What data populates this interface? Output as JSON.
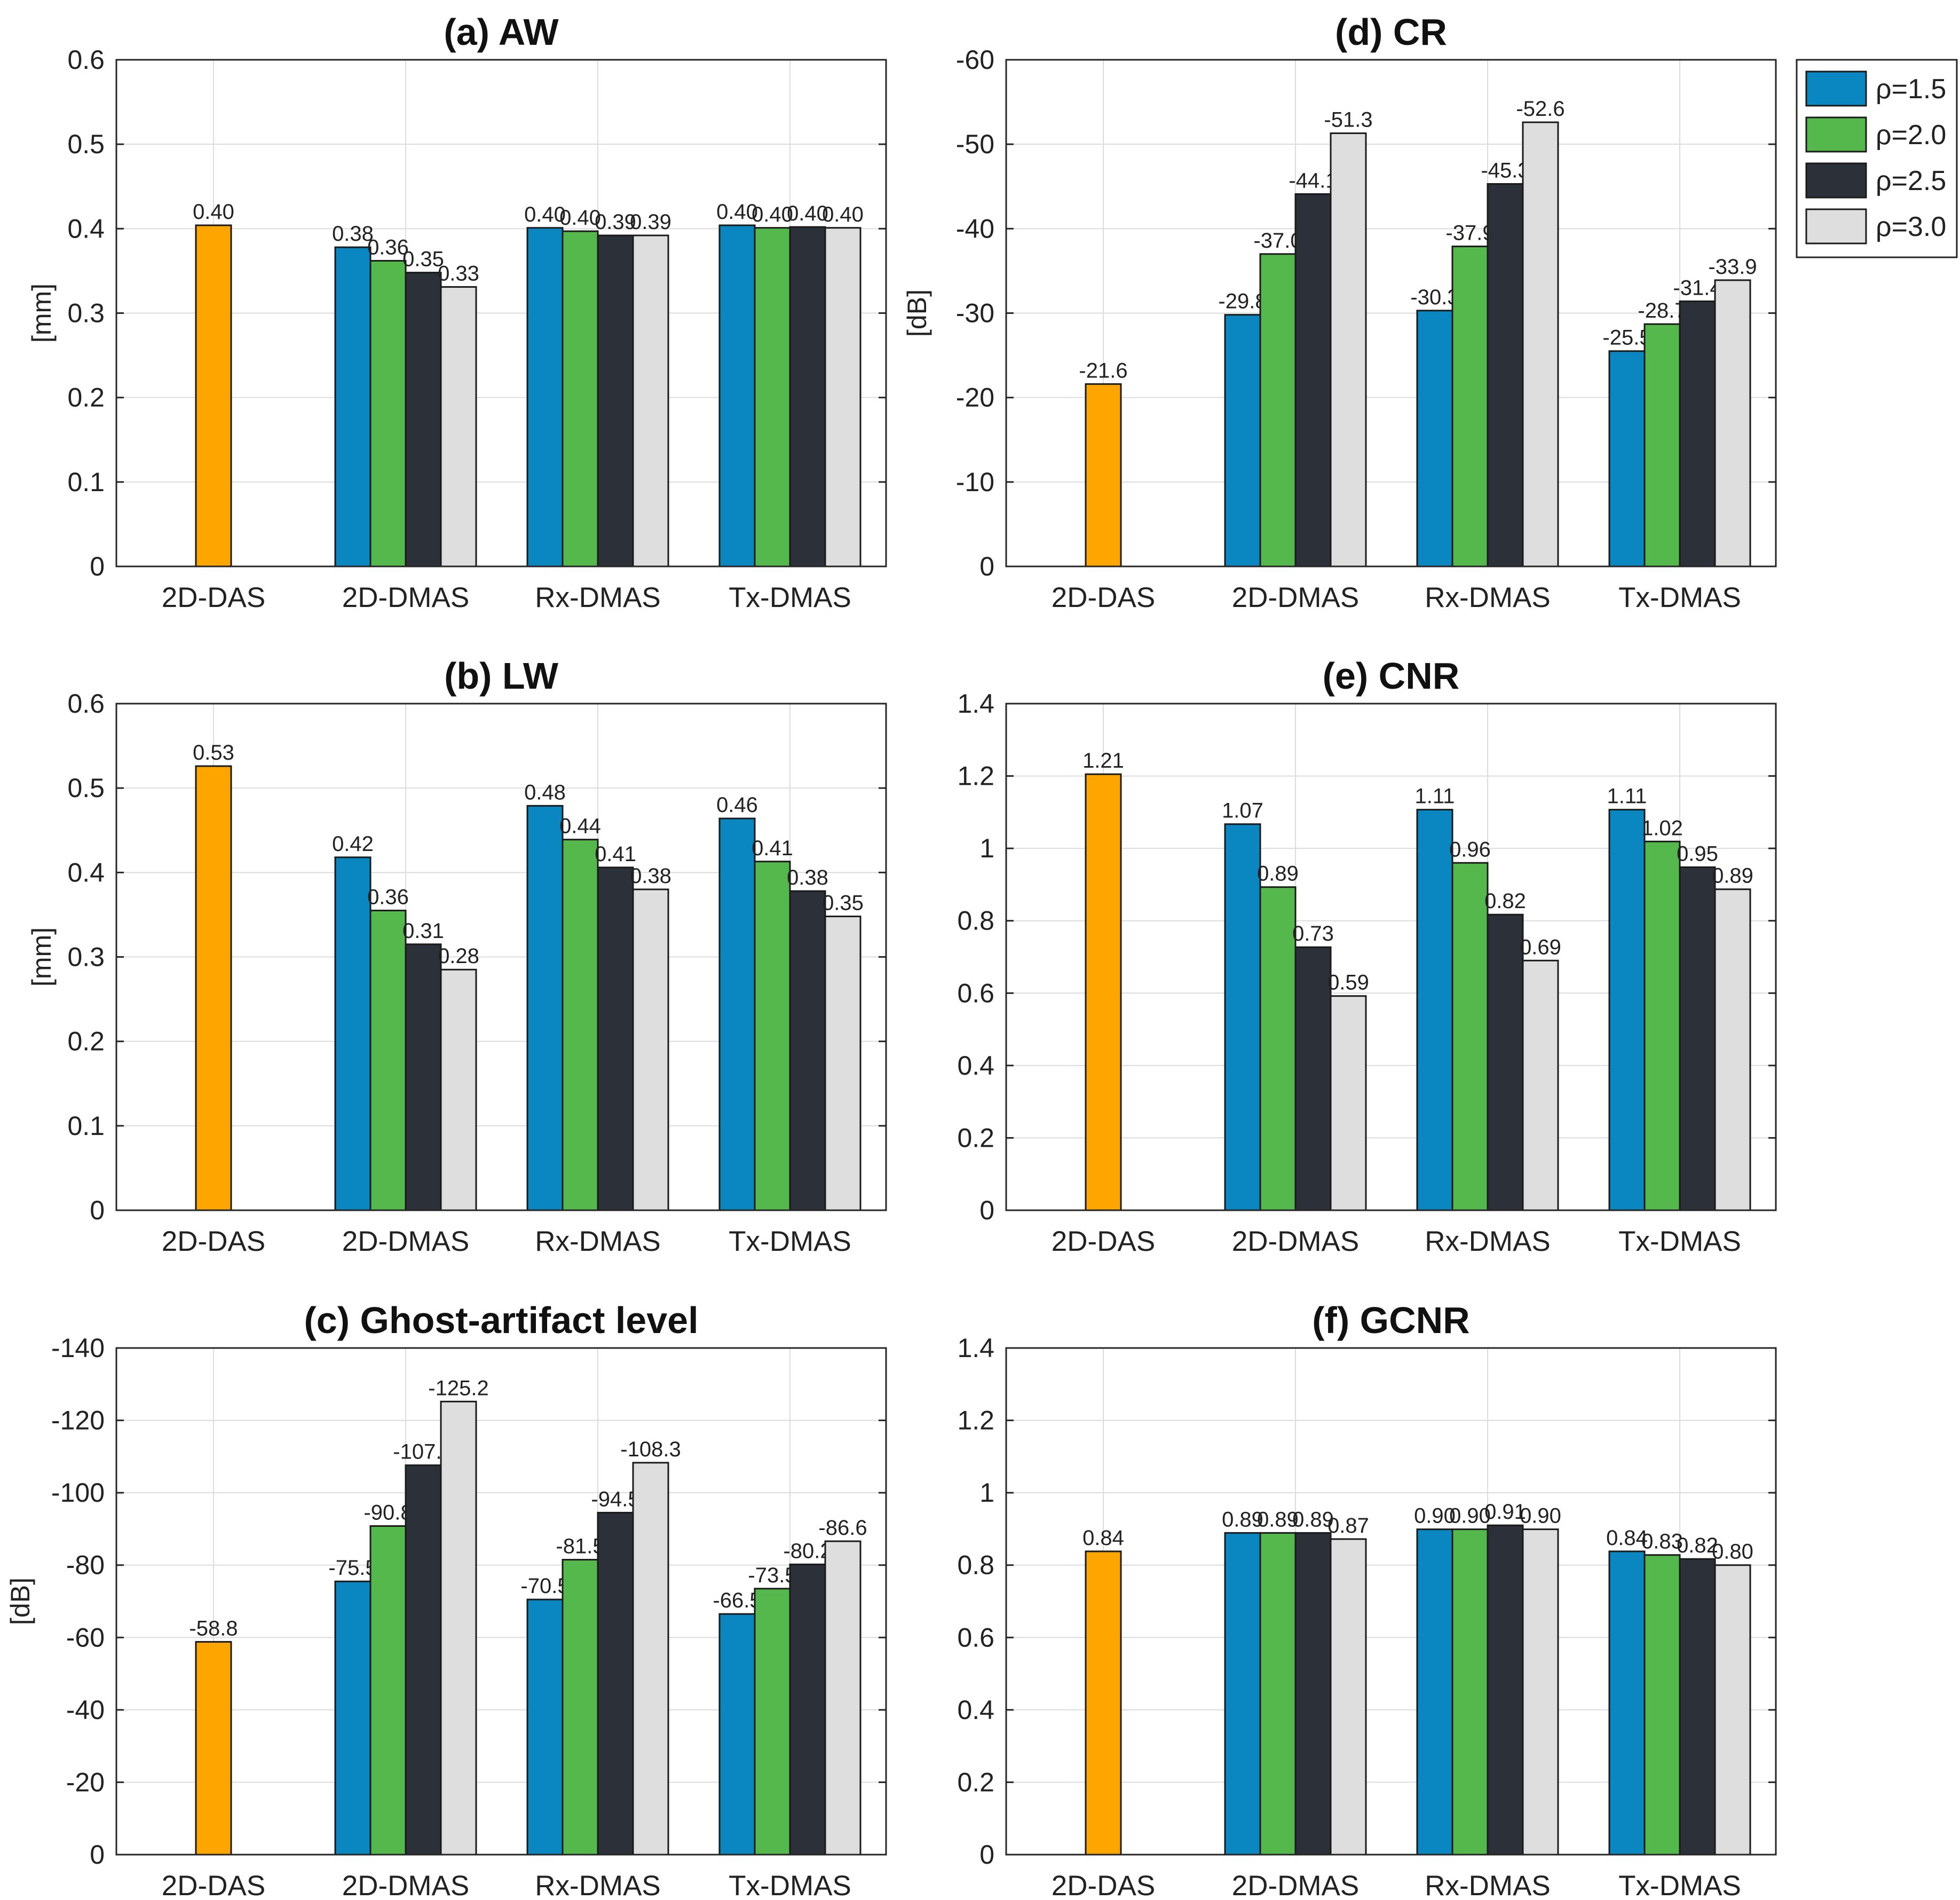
{
  "legend": {
    "entries": [
      {
        "label": "ρ=1.5",
        "color": "#0a87c1"
      },
      {
        "label": "ρ=2.0",
        "color": "#54b84c"
      },
      {
        "label": "ρ=2.5",
        "color": "#2c3038"
      },
      {
        "label": "ρ=3.0",
        "color": "#dedede"
      }
    ],
    "placement": "right of top-right panel"
  },
  "reference_color": "#ffa500",
  "chart_data": [
    {
      "id": "a",
      "type": "bar",
      "title": "(a) AW",
      "ylabel": "[mm]",
      "ylim": [
        0,
        0.6
      ],
      "yticks": [
        0,
        0.1,
        0.2,
        0.3,
        0.4,
        0.5,
        0.6
      ],
      "ytick_labels": [
        "0",
        "0.1",
        "0.2",
        "0.3",
        "0.4",
        "0.5",
        "0.6"
      ],
      "reversed": false,
      "categories": [
        "2D-DAS",
        "2D-DMAS",
        "Rx-DMAS",
        "Tx-DMAS"
      ],
      "reference": {
        "category": "2D-DAS",
        "value": 0.404,
        "label": "0.40"
      },
      "groups": [
        {
          "category": "2D-DMAS",
          "values": [
            0.378,
            0.362,
            0.348,
            0.331
          ],
          "labels": [
            "0.38",
            "0.36",
            "0.35",
            "0.33"
          ]
        },
        {
          "category": "Rx-DMAS",
          "values": [
            0.401,
            0.397,
            0.392,
            0.392
          ],
          "labels": [
            "0.40",
            "0.40",
            "0.39",
            "0.39"
          ]
        },
        {
          "category": "Tx-DMAS",
          "values": [
            0.404,
            0.401,
            0.402,
            0.401
          ],
          "labels": [
            "0.40",
            "0.40",
            "0.40",
            "0.40"
          ]
        }
      ]
    },
    {
      "id": "b",
      "type": "bar",
      "title": "(b) LW",
      "ylabel": "[mm]",
      "ylim": [
        0,
        0.6
      ],
      "yticks": [
        0,
        0.1,
        0.2,
        0.3,
        0.4,
        0.5,
        0.6
      ],
      "ytick_labels": [
        "0",
        "0.1",
        "0.2",
        "0.3",
        "0.4",
        "0.5",
        "0.6"
      ],
      "reversed": false,
      "categories": [
        "2D-DAS",
        "2D-DMAS",
        "Rx-DMAS",
        "Tx-DMAS"
      ],
      "reference": {
        "category": "2D-DAS",
        "value": 0.526,
        "label": "0.53"
      },
      "groups": [
        {
          "category": "2D-DMAS",
          "values": [
            0.418,
            0.355,
            0.315,
            0.285
          ],
          "labels": [
            "0.42",
            "0.36",
            "0.31",
            "0.28"
          ]
        },
        {
          "category": "Rx-DMAS",
          "values": [
            0.479,
            0.439,
            0.406,
            0.38
          ],
          "labels": [
            "0.48",
            "0.44",
            "0.41",
            "0.38"
          ]
        },
        {
          "category": "Tx-DMAS",
          "values": [
            0.464,
            0.413,
            0.378,
            0.348
          ],
          "labels": [
            "0.46",
            "0.41",
            "0.38",
            "0.35"
          ]
        }
      ]
    },
    {
      "id": "c",
      "type": "bar",
      "title": "(c) Ghost-artifact level",
      "ylabel": "[dB]",
      "ylim": [
        0,
        -140
      ],
      "yticks": [
        0,
        -20,
        -40,
        -60,
        -80,
        -100,
        -120,
        -140
      ],
      "ytick_labels": [
        "0",
        "-20",
        "-40",
        "-60",
        "-80",
        "-100",
        "-120",
        "-140"
      ],
      "reversed": true,
      "categories": [
        "2D-DAS",
        "2D-DMAS",
        "Rx-DMAS",
        "Tx-DMAS"
      ],
      "reference": {
        "category": "2D-DAS",
        "value": -58.8,
        "label": "-58.8"
      },
      "groups": [
        {
          "category": "2D-DMAS",
          "values": [
            -75.5,
            -90.8,
            -107.6,
            -125.2
          ],
          "labels": [
            "-75.5",
            "-90.8",
            "-107.6",
            "-125.2"
          ]
        },
        {
          "category": "Rx-DMAS",
          "values": [
            -70.5,
            -81.5,
            -94.5,
            -108.3
          ],
          "labels": [
            "-70.5",
            "-81.5",
            "-94.5",
            "-108.3"
          ]
        },
        {
          "category": "Tx-DMAS",
          "values": [
            -66.5,
            -73.5,
            -80.2,
            -86.6
          ],
          "labels": [
            "-66.5",
            "-73.5",
            "-80.2",
            "-86.6"
          ]
        }
      ]
    },
    {
      "id": "d",
      "type": "bar",
      "title": "(d) CR",
      "ylabel": "[dB]",
      "ylim": [
        0,
        -60
      ],
      "yticks": [
        0,
        -10,
        -20,
        -30,
        -40,
        -50,
        -60
      ],
      "ytick_labels": [
        "0",
        "-10",
        "-20",
        "-30",
        "-40",
        "-50",
        "-60"
      ],
      "reversed": true,
      "categories": [
        "2D-DAS",
        "2D-DMAS",
        "Rx-DMAS",
        "Tx-DMAS"
      ],
      "reference": {
        "category": "2D-DAS",
        "value": -21.6,
        "label": "-21.6"
      },
      "groups": [
        {
          "category": "2D-DMAS",
          "values": [
            -29.8,
            -37.0,
            -44.1,
            -51.3
          ],
          "labels": [
            "-29.8",
            "-37.0",
            "-44.1",
            "-51.3"
          ]
        },
        {
          "category": "Rx-DMAS",
          "values": [
            -30.3,
            -37.9,
            -45.3,
            -52.6
          ],
          "labels": [
            "-30.3",
            "-37.9",
            "-45.3",
            "-52.6"
          ]
        },
        {
          "category": "Tx-DMAS",
          "values": [
            -25.5,
            -28.7,
            -31.4,
            -33.9
          ],
          "labels": [
            "-25.5",
            "-28.7",
            "-31.4",
            "-33.9"
          ]
        }
      ]
    },
    {
      "id": "e",
      "type": "bar",
      "title": "(e) CNR",
      "ylabel": "",
      "ylim": [
        0,
        1.4
      ],
      "yticks": [
        0,
        0.2,
        0.4,
        0.6,
        0.8,
        1,
        1.2,
        1.4
      ],
      "ytick_labels": [
        "0",
        "0.2",
        "0.4",
        "0.6",
        "0.8",
        "1",
        "1.2",
        "1.4"
      ],
      "reversed": false,
      "categories": [
        "2D-DAS",
        "2D-DMAS",
        "Rx-DMAS",
        "Tx-DMAS"
      ],
      "reference": {
        "category": "2D-DAS",
        "value": 1.205,
        "label": "1.21"
      },
      "groups": [
        {
          "category": "2D-DMAS",
          "values": [
            1.067,
            0.893,
            0.727,
            0.592
          ],
          "labels": [
            "1.07",
            "0.89",
            "0.73",
            "0.59"
          ]
        },
        {
          "category": "Rx-DMAS",
          "values": [
            1.107,
            0.96,
            0.817,
            0.69
          ],
          "labels": [
            "1.11",
            "0.96",
            "0.82",
            "0.69"
          ]
        },
        {
          "category": "Tx-DMAS",
          "values": [
            1.107,
            1.019,
            0.948,
            0.887
          ],
          "labels": [
            "1.11",
            "1.02",
            "0.95",
            "0.89"
          ]
        }
      ]
    },
    {
      "id": "f",
      "type": "bar",
      "title": "(f) GCNR",
      "ylabel": "",
      "ylim": [
        0,
        1.4
      ],
      "yticks": [
        0,
        0.2,
        0.4,
        0.6,
        0.8,
        1,
        1.2,
        1.4
      ],
      "ytick_labels": [
        "0",
        "0.2",
        "0.4",
        "0.6",
        "0.8",
        "1",
        "1.2",
        "1.4"
      ],
      "reversed": false,
      "categories": [
        "2D-DAS",
        "2D-DMAS",
        "Rx-DMAS",
        "Tx-DMAS"
      ],
      "reference": {
        "category": "2D-DAS",
        "value": 0.838,
        "label": "0.84"
      },
      "groups": [
        {
          "category": "2D-DMAS",
          "values": [
            0.889,
            0.889,
            0.889,
            0.872
          ],
          "labels": [
            "0.89",
            "0.89",
            "0.89",
            "0.87"
          ]
        },
        {
          "category": "Rx-DMAS",
          "values": [
            0.899,
            0.899,
            0.91,
            0.899
          ],
          "labels": [
            "0.90",
            "0.90",
            "0.91",
            "0.90"
          ]
        },
        {
          "category": "Tx-DMAS",
          "values": [
            0.838,
            0.828,
            0.817,
            0.8
          ],
          "labels": [
            "0.84",
            "0.83",
            "0.82",
            "0.80"
          ]
        }
      ]
    }
  ]
}
